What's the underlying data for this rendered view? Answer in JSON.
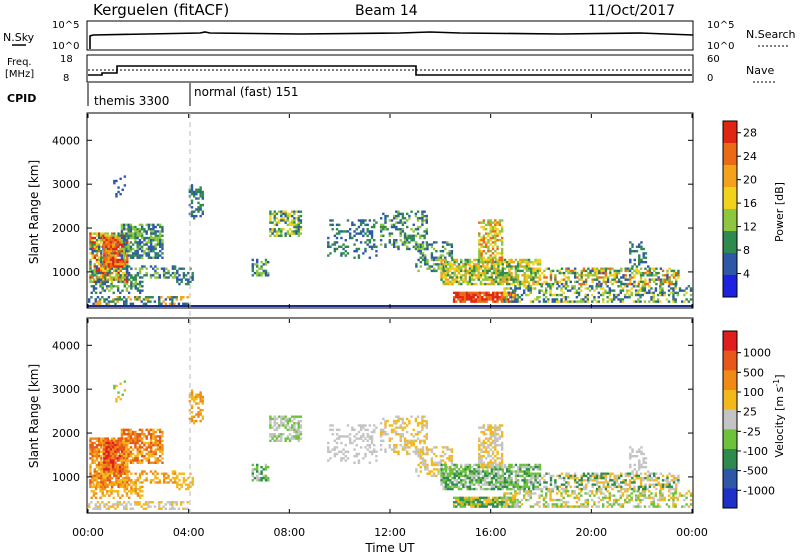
{
  "header": {
    "station": "Kerguelen (fitACF)",
    "beam": "Beam 14",
    "date": "11/Oct/2017"
  },
  "top_panel": {
    "nsky_label": "N.Sky",
    "nsky_tick_hi": "10^5",
    "nsky_tick_lo": "10^0",
    "nsearch_label": "N.Search",
    "nsearch_tick_hi": "10^5",
    "nsearch_tick_lo": "10^0",
    "freq_label_1": "Freq.",
    "freq_label_2": "[MHz]",
    "freq_tick_hi": "18",
    "freq_tick_lo": "8",
    "nave_label": "Nave",
    "nave_tick_hi": "60",
    "nave_tick_lo": "0",
    "cpid_label": "CPID",
    "cpid_1": "themis 3300",
    "cpid_2": "normal (fast) 151"
  },
  "xaxis": {
    "label": "Time UT",
    "ticks": [
      "00:00",
      "04:00",
      "08:00",
      "12:00",
      "16:00",
      "20:00",
      "00:00"
    ]
  },
  "chart_data": [
    {
      "type": "heatmap",
      "title": "Power",
      "ylabel": "Slant Range [km]",
      "xlabel": "Time UT",
      "ylim": [
        200,
        4600
      ],
      "xlim": [
        0,
        24
      ],
      "yticks": [
        "1000",
        "2000",
        "3000",
        "4000"
      ],
      "colorbar_label": "Power [dB]",
      "colorbar_ticks": [
        "4",
        "8",
        "12",
        "16",
        "20",
        "24",
        "28"
      ],
      "colorbar_range": [
        0,
        30
      ],
      "colors": [
        "#1e22e0",
        "#2e57a8",
        "#2f8a4e",
        "#8dc63f",
        "#f2d21a",
        "#f5a21b",
        "#ea6a16",
        "#e02512"
      ]
    },
    {
      "type": "heatmap",
      "title": "Velocity",
      "ylabel": "Slant Range [km]",
      "xlabel": "Time UT",
      "ylim": [
        200,
        4600
      ],
      "xlim": [
        0,
        24
      ],
      "yticks": [
        "1000",
        "2000",
        "3000",
        "4000"
      ],
      "colorbar_label": "Velocity [m s^-1]",
      "colorbar_ticks": [
        "1000",
        "500",
        "100",
        "25",
        "-25",
        "-100",
        "-500",
        "-1000"
      ],
      "colors": [
        "#1f30c8",
        "#2e57a8",
        "#2f8a4e",
        "#6cc23b",
        "#c4c4c4",
        "#f3b81a",
        "#ef8a16",
        "#e8571a",
        "#e01e1e"
      ]
    }
  ]
}
